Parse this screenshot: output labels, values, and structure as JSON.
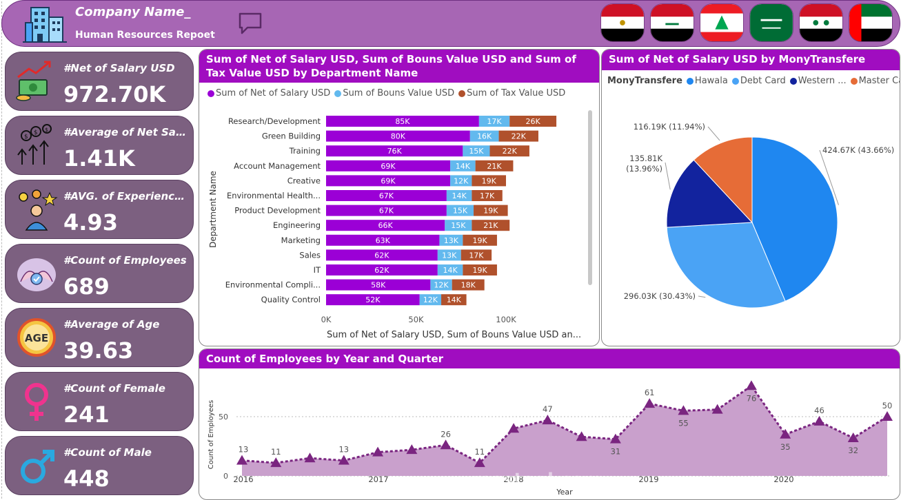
{
  "header": {
    "company_name": "Company Name_",
    "report_title": "Human Resources Repoet",
    "flags": [
      "egypt-flag",
      "iraq-flag",
      "lebanon-flag",
      "saudi-arabia-flag",
      "syria-flag",
      "uae-flag"
    ]
  },
  "kpis": [
    {
      "label": "#Net of Salary USD",
      "value": "972.70K",
      "icon": "money-growth-icon"
    },
    {
      "label": "#Average of Net Salary USD",
      "value": "1.41K",
      "icon": "dollar-arrows-icon"
    },
    {
      "label": "#AVG. of Experience Years",
      "value": "4.93",
      "icon": "person-ideas-icon"
    },
    {
      "label": "#Count of Employees",
      "value": "689",
      "icon": "team-hands-icon"
    },
    {
      "label": "#Average of Age",
      "value": "39.63",
      "icon": "age-badge-icon"
    },
    {
      "label": "#Count of Female",
      "value": "241",
      "icon": "female-icon"
    },
    {
      "label": "#Count of Male",
      "value": "448",
      "icon": "male-icon"
    }
  ],
  "colors": {
    "header": "#a766b4",
    "title_bar": "#a00dc0",
    "kpi_card": "#7c6080",
    "net": "#9b00d6",
    "bonus": "#62b9ee",
    "tax": "#b0512c",
    "area": "#c9a0cc",
    "line": "#7a2580"
  },
  "dept_chart": {
    "title": "Sum of Net of Salary USD, Sum of Bouns Value USD and Sum of Tax Value USD by Department Name",
    "legend": [
      "Sum of Net of Salary USD",
      "Sum of Bouns Value USD",
      "Sum of Tax Value USD"
    ],
    "ylabel": "Department Name",
    "xlabel": "Sum of Net of Salary USD, Sum of Bouns Value USD an...",
    "x_ticks": [
      "0K",
      "50K",
      "100K"
    ]
  },
  "pie_chart": {
    "title": "Sum of Net of Salary USD by MonyTransfere",
    "legend_title": "MonyTransfere",
    "legend": [
      "Hawala",
      "Debt Card",
      "Western ...",
      "Master Card"
    ]
  },
  "line_chart": {
    "title": "Count of Employees by Year and Quarter",
    "ylabel": "Count of Employees",
    "xlabel": "Year",
    "x_ticks": [
      "2016",
      "2017",
      "2018",
      "2019",
      "2020"
    ],
    "y_ticks": [
      "0",
      "50"
    ]
  },
  "watermark": "mostaql.com",
  "chart_data": [
    {
      "type": "bar",
      "orientation": "horizontal",
      "stacked": true,
      "title": "Sum of Net of Salary USD, Sum of Bouns Value USD and Sum of Tax Value USD by Department Name",
      "xlabel": "Sum of Net of Salary USD, Sum of Bouns Value USD an...",
      "ylabel": "Department Name",
      "xlim": [
        0,
        150
      ],
      "categories": [
        "Research/Development",
        "Green Building",
        "Training",
        "Account Management",
        "Creative",
        "Environmental Health...",
        "Product Development",
        "Engineering",
        "Marketing",
        "Sales",
        "IT",
        "Environmental Compli...",
        "Quality Control"
      ],
      "series": [
        {
          "name": "Sum of Net of Salary USD",
          "values": [
            85,
            80,
            76,
            69,
            69,
            67,
            67,
            66,
            63,
            62,
            62,
            58,
            52
          ],
          "labels": [
            "85K",
            "80K",
            "76K",
            "69K",
            "69K",
            "67K",
            "67K",
            "66K",
            "63K",
            "62K",
            "62K",
            "58K",
            "52K"
          ]
        },
        {
          "name": "Sum of Bouns Value USD",
          "values": [
            17,
            16,
            15,
            14,
            12,
            14,
            15,
            15,
            13,
            13,
            14,
            12,
            12
          ],
          "labels": [
            "17K",
            "16K",
            "15K",
            "14K",
            "12K",
            "14K",
            "15K",
            "15K",
            "13K",
            "13K",
            "14K",
            "12K",
            "12K"
          ]
        },
        {
          "name": "Sum of Tax Value USD",
          "values": [
            26,
            22,
            22,
            21,
            19,
            17,
            19,
            21,
            19,
            17,
            19,
            18,
            14
          ],
          "labels": [
            "26K",
            "22K",
            "22K",
            "21K",
            "19K",
            "17K",
            "19K",
            "21K",
            "19K",
            "17K",
            "19K",
            "18K",
            "14K"
          ]
        }
      ],
      "legend_position": "top"
    },
    {
      "type": "pie",
      "title": "Sum of Net of Salary USD by MonyTransfere",
      "legend_title": "MonyTransfere",
      "slices": [
        {
          "name": "Hawala",
          "value": 424.67,
          "label": "424.67K (43.66%)",
          "color": "#1f87f0"
        },
        {
          "name": "Debt Card",
          "value": 296.03,
          "label": "296.03K (30.43%)",
          "color": "#4aa3f5"
        },
        {
          "name": "Western ...",
          "value": 135.81,
          "label": "135.81K (13.96%)",
          "color": "#12239e"
        },
        {
          "name": "Master Card",
          "value": 116.19,
          "label": "116.19K (11.94%)",
          "color": "#e66c37"
        }
      ],
      "legend_position": "top"
    },
    {
      "type": "area",
      "title": "Count of Employees by Year and Quarter",
      "xlabel": "Year",
      "ylabel": "Count of Employees",
      "ylim": [
        0,
        80
      ],
      "x_ticks": [
        "2016",
        "2017",
        "2018",
        "2019",
        "2020"
      ],
      "x": [
        "2016 Q1",
        "2016 Q2",
        "2016 Q3",
        "2016 Q4",
        "2017 Q1",
        "2017 Q2",
        "2017 Q3",
        "2017 Q4",
        "2018 Q1",
        "2018 Q2",
        "2018 Q3",
        "2018 Q4",
        "2019 Q1",
        "2019 Q2",
        "2019 Q3",
        "2019 Q4",
        "2020 Q1",
        "2020 Q2",
        "2020 Q3",
        "2020 Q4"
      ],
      "values": [
        13,
        11,
        15,
        13,
        20,
        22,
        26,
        11,
        40,
        47,
        33,
        31,
        61,
        55,
        56,
        76,
        35,
        46,
        32,
        50
      ],
      "labels": [
        "13",
        "11",
        "",
        "13",
        "",
        "",
        "26",
        "11",
        "",
        "47",
        "",
        "31",
        "61",
        "55",
        "",
        "76",
        "35",
        "46",
        "32",
        "50"
      ],
      "grid": true
    }
  ]
}
